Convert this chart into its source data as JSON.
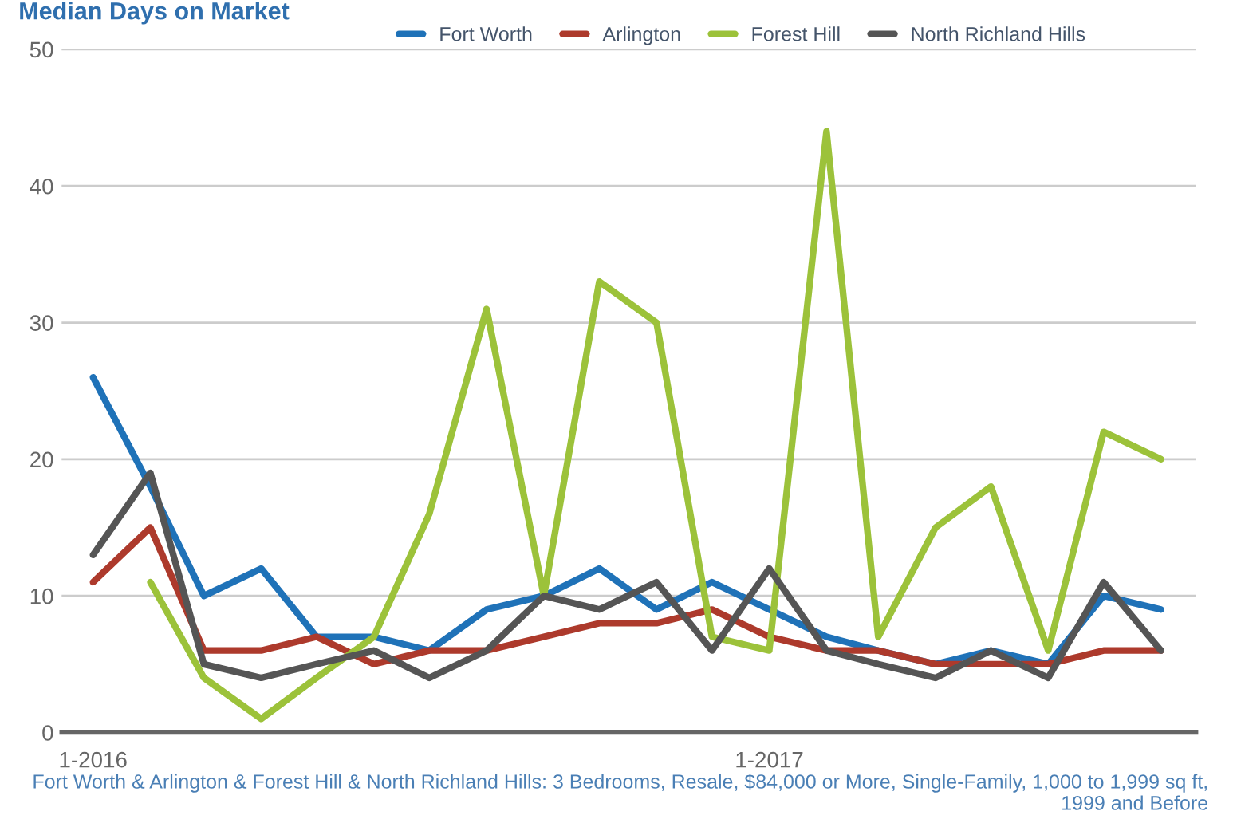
{
  "chart_data": {
    "type": "line",
    "title": "Median Days on Market",
    "x": [
      "2016-01",
      "2016-02",
      "2016-03",
      "2016-04",
      "2016-05",
      "2016-06",
      "2016-07",
      "2016-08",
      "2016-09",
      "2016-10",
      "2016-11",
      "2016-12",
      "2017-01",
      "2017-02",
      "2017-03",
      "2017-04",
      "2017-05",
      "2017-06",
      "2017-07",
      "2017-08"
    ],
    "series": [
      {
        "name": "Fort Worth",
        "color": "#1f72b8",
        "values": [
          26,
          18,
          10,
          12,
          7,
          7,
          6,
          9,
          10,
          12,
          9,
          11,
          9,
          7,
          6,
          5,
          6,
          5,
          10,
          9
        ]
      },
      {
        "name": "Arlington",
        "color": "#ad3a2c",
        "values": [
          11,
          15,
          6,
          6,
          7,
          5,
          6,
          6,
          7,
          8,
          8,
          9,
          7,
          6,
          6,
          5,
          5,
          5,
          6,
          6
        ]
      },
      {
        "name": "Forest Hill",
        "color": "#9cc23a",
        "values": [
          null,
          11,
          4,
          1,
          4,
          7,
          16,
          31,
          10,
          33,
          30,
          7,
          6,
          44,
          7,
          15,
          18,
          6,
          22,
          20
        ]
      },
      {
        "name": "North Richland Hills",
        "color": "#555555",
        "values": [
          13,
          19,
          5,
          4,
          5,
          6,
          4,
          6,
          10,
          9,
          11,
          6,
          12,
          6,
          5,
          4,
          6,
          4,
          11,
          6
        ]
      }
    ],
    "xlim": [
      "2015-12-15",
      "2017-08-20"
    ],
    "xticks": [
      {
        "value": "2016-01",
        "label": "1-2016"
      },
      {
        "value": "2017-01",
        "label": "1-2017"
      }
    ],
    "ylim": [
      0,
      50
    ],
    "yticks": [
      0,
      10,
      20,
      30,
      40,
      50
    ],
    "grid": "y",
    "legend": "top",
    "marker": "none",
    "line_style": "solid",
    "annotations": [
      "Fort Worth & Arlington & Forest Hill & North Richland Hills: 3 Bedrooms, Resale, $84,000 or More, Single-Family, 1,000 to 1,999 sq ft, 1999 and Before"
    ]
  }
}
